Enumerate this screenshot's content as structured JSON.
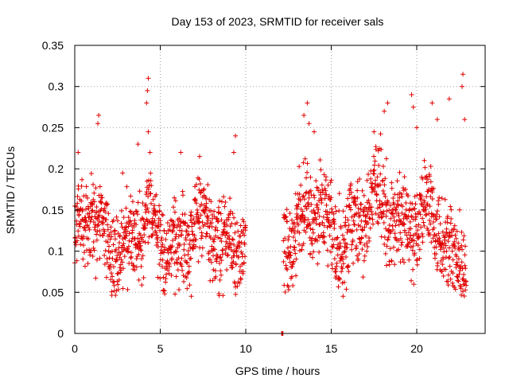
{
  "chart_data": {
    "type": "scatter",
    "title": "Day 153 of 2023, SRMTID for receiver sals",
    "xlabel": "GPS time / hours",
    "ylabel": "SRMTID / TECUs",
    "xlim": [
      0,
      24
    ],
    "ylim": [
      0,
      0.35
    ],
    "xticks": [
      0,
      5,
      10,
      15,
      20
    ],
    "yticks": [
      0,
      0.05,
      0.1,
      0.15,
      0.2,
      0.25,
      0.3,
      0.35
    ],
    "ytick_labels": [
      "0",
      "0.05",
      "0.1",
      "0.15",
      "0.2",
      "0.25",
      "0.3",
      "0.35"
    ],
    "grid": true,
    "marker": "+",
    "color": "#e00000",
    "series": [
      {
        "name": "SRMTID",
        "segments": [
          {
            "x_start": 0.0,
            "x_end": 10.0,
            "step": 0.012,
            "y_mean": 0.12,
            "y_spread": 0.045
          },
          {
            "x_start": 12.1,
            "x_end": 12.2,
            "step": 0.025,
            "y_mean": 0.0,
            "y_spread": 0.0
          },
          {
            "x_start": 12.2,
            "x_end": 22.9,
            "step": 0.012,
            "y_mean": 0.13,
            "y_spread": 0.05
          }
        ],
        "spikes": [
          {
            "x": 0.2,
            "y": 0.22
          },
          {
            "x": 1.4,
            "y": 0.265
          },
          {
            "x": 1.35,
            "y": 0.255
          },
          {
            "x": 2.8,
            "y": 0.195
          },
          {
            "x": 3.7,
            "y": 0.23
          },
          {
            "x": 4.3,
            "y": 0.31
          },
          {
            "x": 4.25,
            "y": 0.295
          },
          {
            "x": 4.2,
            "y": 0.28
          },
          {
            "x": 4.3,
            "y": 0.245
          },
          {
            "x": 4.4,
            "y": 0.22
          },
          {
            "x": 6.2,
            "y": 0.22
          },
          {
            "x": 7.3,
            "y": 0.215
          },
          {
            "x": 9.4,
            "y": 0.24
          },
          {
            "x": 9.3,
            "y": 0.22
          },
          {
            "x": 13.4,
            "y": 0.265
          },
          {
            "x": 13.6,
            "y": 0.28
          },
          {
            "x": 13.7,
            "y": 0.255
          },
          {
            "x": 14.0,
            "y": 0.245
          },
          {
            "x": 18.1,
            "y": 0.27
          },
          {
            "x": 18.3,
            "y": 0.28
          },
          {
            "x": 19.7,
            "y": 0.29
          },
          {
            "x": 19.8,
            "y": 0.275
          },
          {
            "x": 20.9,
            "y": 0.28
          },
          {
            "x": 21.9,
            "y": 0.285
          },
          {
            "x": 22.7,
            "y": 0.315
          },
          {
            "x": 22.65,
            "y": 0.3
          },
          {
            "x": 22.8,
            "y": 0.26
          },
          {
            "x": 21.2,
            "y": 0.26
          },
          {
            "x": 20.0,
            "y": 0.25
          },
          {
            "x": 17.5,
            "y": 0.245
          }
        ]
      }
    ]
  }
}
